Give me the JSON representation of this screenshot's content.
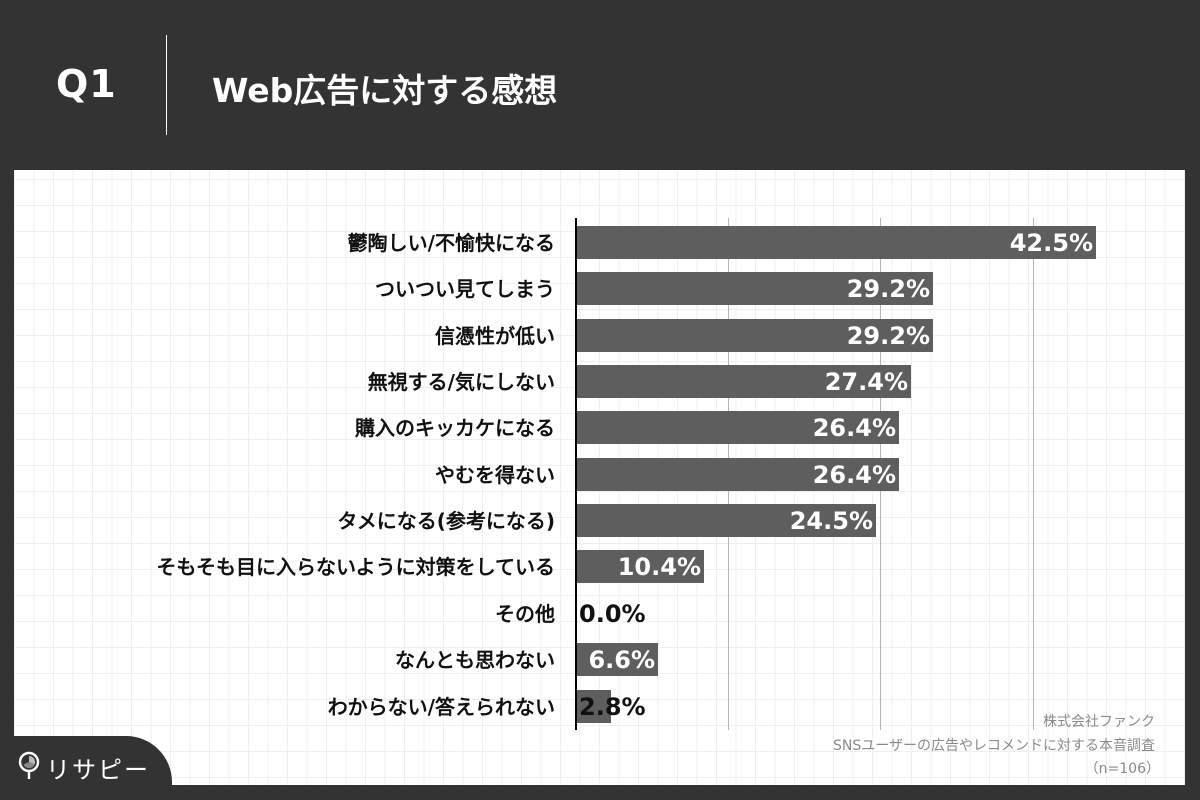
{
  "header": {
    "question_number": "Q1",
    "title": "Web広告に対する感想"
  },
  "brand": {
    "logo_text": "リサピー",
    "logo_icon": "pin-pie-icon"
  },
  "footnote": {
    "company": "株式会社ファンク",
    "survey": "SNSユーザーの広告やレコメンドに対する本音調査",
    "sample": "（n=106）"
  },
  "colors": {
    "background": "#333333",
    "bar": "#5e5e5e",
    "value_label_on_bar": "#ffffff",
    "value_label_off_bar": "#111111",
    "gridline": "#b5b5b5"
  },
  "chart_data": {
    "type": "bar",
    "orientation": "horizontal",
    "title": "Web広告に対する感想",
    "xlabel": "",
    "ylabel": "",
    "xlim": [
      0,
      50
    ],
    "gridlines": [
      12.5,
      25,
      37.5
    ],
    "grid": true,
    "legend": null,
    "unit": "%",
    "categories": [
      "鬱陶しい/不愉快になる",
      "ついつい見てしまう",
      "信憑性が低い",
      "無視する/気にしない",
      "購入のキッカケになる",
      "やむを得ない",
      "タメになる(参考になる)",
      "そもそも目に入らないように対策をしている",
      "その他",
      "なんとも思わない",
      "わからない/答えられない"
    ],
    "values": [
      42.5,
      29.2,
      29.2,
      27.4,
      26.4,
      26.4,
      24.5,
      10.4,
      0.0,
      6.6,
      2.8
    ],
    "value_labels": [
      "42.5%",
      "29.2%",
      "29.2%",
      "27.4%",
      "26.4%",
      "26.4%",
      "24.5%",
      "10.4%",
      "0.0%",
      "6.6%",
      "2.8%"
    ],
    "note": "（n=106）"
  }
}
